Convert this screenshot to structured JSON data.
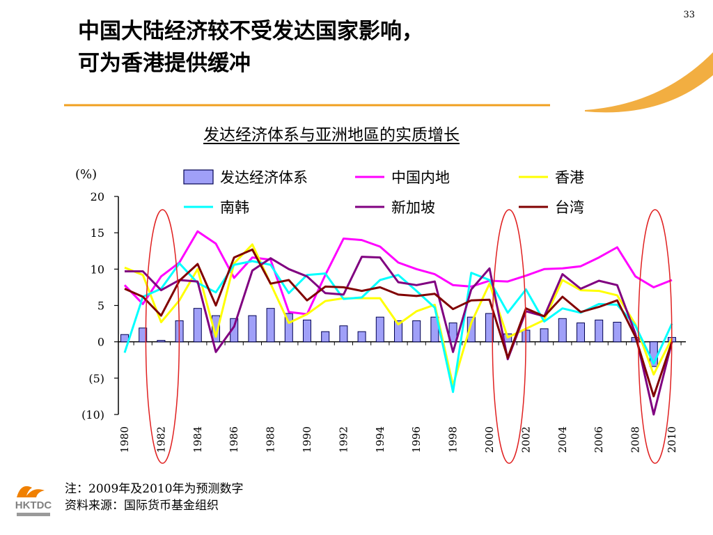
{
  "page_number": "33",
  "slide_title": [
    "中国大陆经济较不受发达国家影响，",
    "可为香港提供缓冲"
  ],
  "logo_text": "HKTDC",
  "footnotes": [
    "注：2009年及2010年为预测数字",
    "资料来源：国际货币基金组织"
  ],
  "colors": {
    "accent_orange": "#f0a020",
    "bar_fill": "#a0a0f8",
    "bar_stroke": "#000050",
    "highlight_ellipse": "#e02020",
    "logo_orange": "#f08000",
    "logo_gray": "#808080"
  },
  "chart_data": {
    "type": "bar+line",
    "title": "发达经济体系与亚洲地區的实质增长",
    "ylabel": "(%)",
    "ylim": [
      -10,
      20
    ],
    "yticks": [
      20,
      15,
      10,
      5,
      0,
      -5,
      -10
    ],
    "ytick_labels": [
      "20",
      "15",
      "10",
      "5",
      "0",
      "(5)",
      "(10)"
    ],
    "x": [
      1980,
      1981,
      1982,
      1983,
      1984,
      1985,
      1986,
      1987,
      1988,
      1989,
      1990,
      1991,
      1992,
      1993,
      1994,
      1995,
      1996,
      1997,
      1998,
      1999,
      2000,
      2001,
      2002,
      2003,
      2004,
      2005,
      2006,
      2007,
      2008,
      2009,
      2010
    ],
    "xtick_labels": [
      "1980",
      "1982",
      "1984",
      "1986",
      "1988",
      "1990",
      "1992",
      "1994",
      "1996",
      "1998",
      "2000",
      "2002",
      "2004",
      "2006",
      "2008",
      "2010"
    ],
    "legend_position": "top",
    "highlight_years": [
      1982,
      2001,
      2009
    ],
    "bar_series": {
      "name": "发达经济体系",
      "values": [
        1.0,
        1.9,
        0.2,
        2.9,
        4.6,
        3.6,
        3.2,
        3.6,
        4.6,
        3.9,
        3.0,
        1.4,
        2.2,
        1.4,
        3.4,
        2.9,
        2.9,
        3.4,
        2.6,
        3.4,
        3.9,
        1.1,
        1.6,
        1.8,
        3.2,
        2.6,
        3.0,
        2.7,
        0.6,
        -3.4,
        0.6
      ]
    },
    "line_series": [
      {
        "name": "中国内地",
        "color": "#ff00ff",
        "values": [
          7.8,
          5.2,
          9.0,
          10.9,
          15.2,
          13.5,
          8.8,
          11.6,
          11.3,
          4.1,
          3.8,
          9.2,
          14.2,
          14.0,
          13.1,
          10.9,
          10.0,
          9.3,
          7.8,
          7.6,
          8.4,
          8.3,
          9.1,
          10.0,
          10.1,
          10.4,
          11.6,
          13.0,
          9.0,
          7.5,
          8.5
        ]
      },
      {
        "name": "香港",
        "color": "#ffff00",
        "values": [
          10.2,
          9.2,
          2.7,
          5.7,
          10.0,
          0.7,
          10.8,
          13.4,
          8.0,
          2.6,
          3.8,
          5.6,
          6.0,
          6.0,
          6.0,
          2.4,
          4.2,
          5.1,
          -6.0,
          2.6,
          8.0,
          0.6,
          1.8,
          3.0,
          8.5,
          7.1,
          7.0,
          6.4,
          2.4,
          -4.5,
          0.5
        ]
      },
      {
        "name": "南韩",
        "color": "#00ffff",
        "values": [
          -1.5,
          6.2,
          7.3,
          10.8,
          8.1,
          6.8,
          10.6,
          11.1,
          10.6,
          6.7,
          9.2,
          9.4,
          5.9,
          6.1,
          8.5,
          9.2,
          7.0,
          4.7,
          -6.9,
          9.5,
          8.5,
          4.0,
          7.2,
          2.8,
          4.6,
          4.0,
          5.2,
          5.1,
          2.2,
          -3.0,
          2.5
        ]
      },
      {
        "name": "新加坡",
        "color": "#800080",
        "values": [
          9.7,
          9.7,
          7.1,
          8.5,
          8.3,
          -1.4,
          2.1,
          9.8,
          11.5,
          10.0,
          9.0,
          6.7,
          6.5,
          11.7,
          11.6,
          8.2,
          7.8,
          8.3,
          -1.4,
          7.2,
          10.1,
          -2.4,
          4.2,
          3.5,
          9.3,
          7.3,
          8.4,
          7.8,
          1.1,
          -10.0,
          0.0
        ]
      },
      {
        "name": "台湾",
        "color": "#800000",
        "values": [
          7.3,
          6.2,
          3.6,
          8.4,
          10.7,
          5.0,
          11.6,
          12.7,
          8.0,
          8.5,
          5.7,
          7.6,
          7.5,
          7.0,
          7.5,
          6.5,
          6.3,
          6.6,
          4.5,
          5.7,
          5.8,
          -2.2,
          4.6,
          3.5,
          6.2,
          4.1,
          4.8,
          5.7,
          0.7,
          -7.5,
          0.0
        ]
      }
    ]
  }
}
